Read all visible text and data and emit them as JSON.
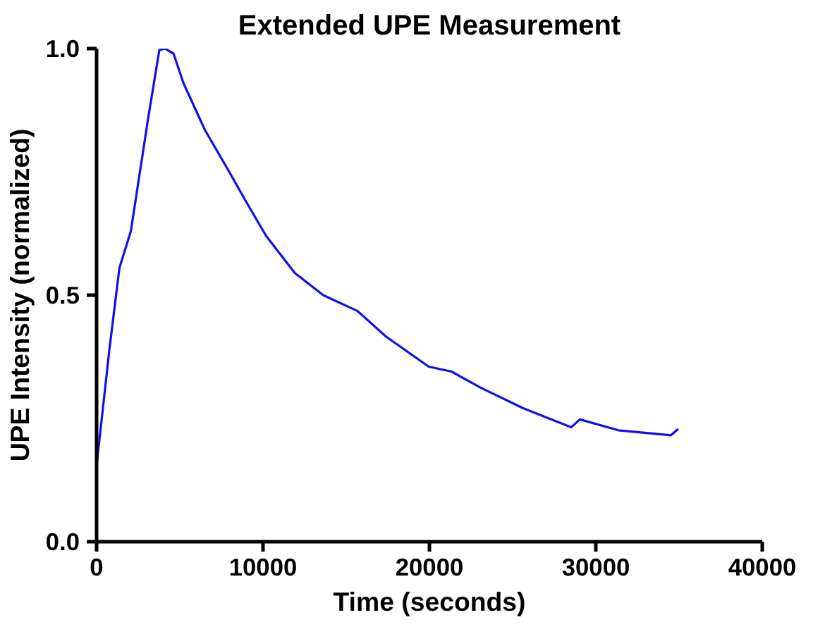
{
  "chart_data": {
    "type": "line",
    "title": "Extended UPE Measurement",
    "xlabel": "Time (seconds)",
    "ylabel": "UPE Intensity (normalized)",
    "x": [
      0,
      770,
      1370,
      2060,
      3080,
      3770,
      4110,
      4620,
      5220,
      6510,
      7970,
      9080,
      10190,
      11910,
      13620,
      15670,
      17390,
      19960,
      21330,
      23040,
      25610,
      28520,
      29040,
      31350,
      34520,
      34950
    ],
    "series": [
      {
        "color": "#1010ee",
        "values": [
          0.155,
          0.39,
          0.555,
          0.63,
          0.855,
          0.997,
          1.0,
          0.99,
          0.93,
          0.835,
          0.75,
          0.684,
          0.62,
          0.545,
          0.5,
          0.468,
          0.416,
          0.355,
          0.345,
          0.313,
          0.271,
          0.232,
          0.248,
          0.226,
          0.216,
          0.229
        ]
      }
    ],
    "xlim": [
      0,
      40000
    ],
    "xticks": [
      0,
      10000,
      20000,
      30000,
      40000
    ],
    "ylim": [
      0,
      1.0
    ],
    "yticks": [
      {
        "value": 0,
        "label": "0.0"
      },
      {
        "value": 0.5,
        "label": "0.5"
      },
      {
        "value": 1.0,
        "label": "1.0"
      }
    ],
    "grid": false,
    "marker": "none",
    "line_style": "solid"
  }
}
